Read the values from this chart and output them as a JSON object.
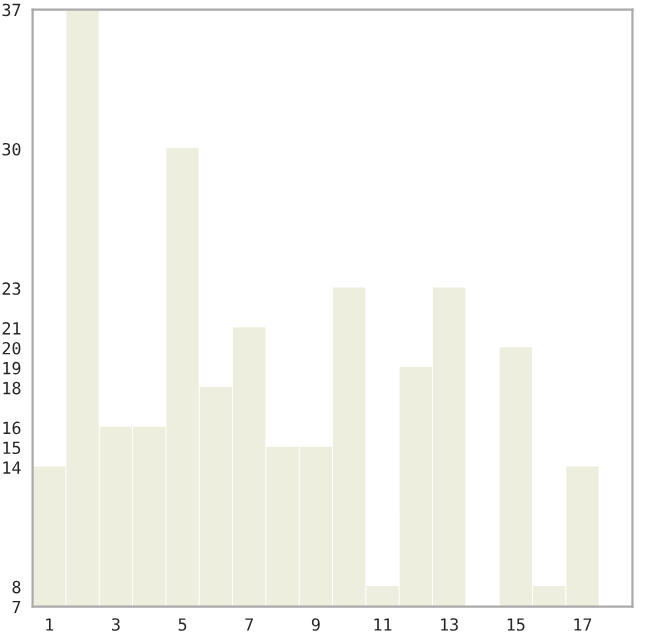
{
  "chart_data": {
    "type": "bar",
    "categories": [
      "1",
      null,
      "3",
      null,
      "5",
      null,
      "7",
      null,
      "9",
      null,
      "11",
      null,
      "13",
      null,
      "15",
      null,
      "17",
      null
    ],
    "values": [
      14,
      37,
      16,
      16,
      30,
      18,
      21,
      15,
      15,
      23,
      8,
      19,
      23,
      7,
      20,
      8,
      14,
      7
    ],
    "color": "#eeeedf",
    "ylim": [
      7,
      37
    ],
    "yticks": [
      7,
      8,
      14,
      15,
      16,
      18,
      19,
      20,
      21,
      23,
      30,
      37
    ],
    "grid": false
  }
}
